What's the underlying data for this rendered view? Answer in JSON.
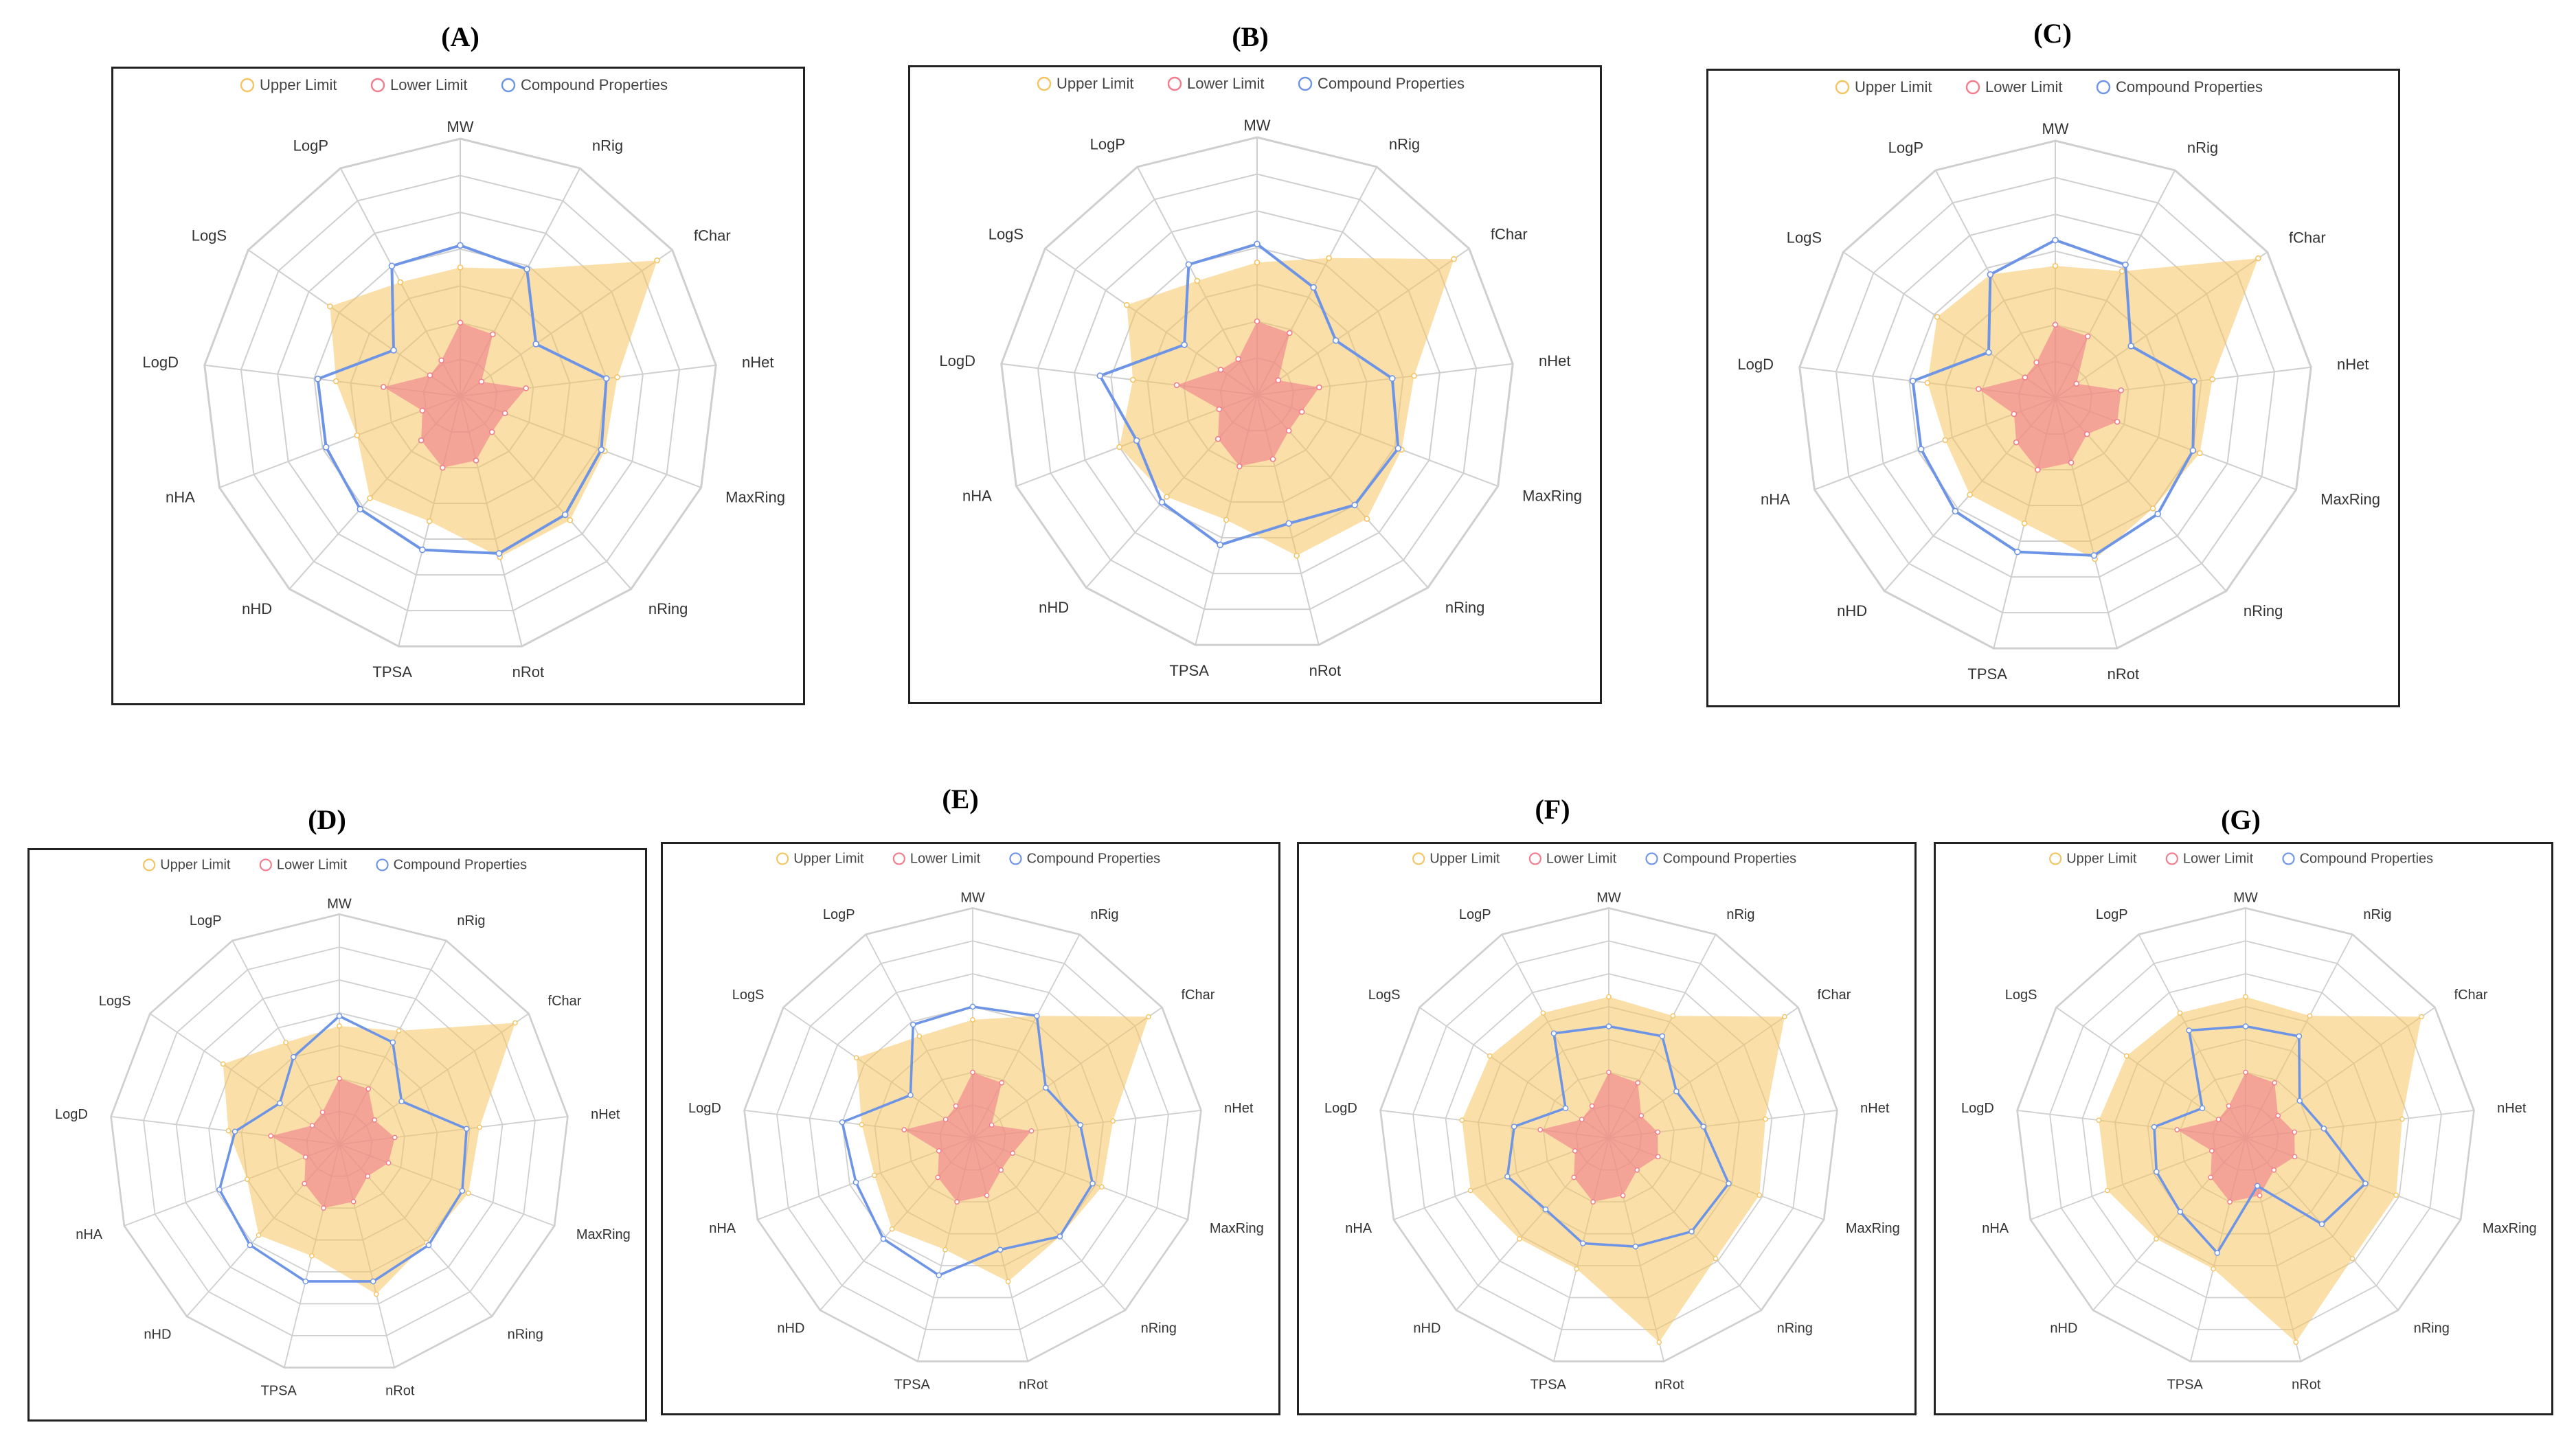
{
  "chart_data": {
    "type": "radar",
    "axes": [
      "MW",
      "nRig",
      "fChar",
      "nHet",
      "MaxRing",
      "nRing",
      "nRot",
      "TPSA",
      "nHD",
      "nHA",
      "LogD",
      "LogS",
      "LogP"
    ],
    "legend": [
      "Upper Limit",
      "Lower Limit",
      "Compound Properties"
    ],
    "colors": {
      "upper": "#f5c462",
      "lower": "#f07c8c",
      "compound": "#6e94e6",
      "grid": "#cfcfcf"
    },
    "scale_max": 7,
    "panels": [
      {
        "label": "(A)",
        "upper": [
          3.5,
          3.9,
          6.5,
          4.3,
          4.2,
          4.5,
          4.5,
          3.5,
          3.7,
          3.0,
          3.4,
          4.3,
          3.5
        ],
        "lower": [
          2.0,
          1.9,
          0.7,
          1.8,
          1.3,
          1.3,
          1.8,
          2.0,
          1.6,
          1.1,
          2.1,
          1.0,
          1.1
        ],
        "compound": [
          4.1,
          3.9,
          2.5,
          4.0,
          4.1,
          4.3,
          4.4,
          4.3,
          4.1,
          3.9,
          3.9,
          2.2,
          4.0
        ]
      },
      {
        "label": "(B)",
        "upper": [
          3.6,
          4.2,
          6.5,
          4.3,
          4.2,
          4.5,
          4.5,
          3.5,
          3.7,
          4.0,
          3.4,
          4.3,
          3.5
        ],
        "lower": [
          2.0,
          1.9,
          0.7,
          1.7,
          1.3,
          1.3,
          1.8,
          2.0,
          1.6,
          1.1,
          2.2,
          1.2,
          1.1
        ],
        "compound": [
          4.1,
          3.3,
          2.6,
          3.7,
          4.1,
          4.0,
          3.6,
          4.2,
          3.9,
          3.5,
          4.3,
          2.4,
          4.0
        ]
      },
      {
        "label": "(C)",
        "upper": [
          3.6,
          3.9,
          6.7,
          4.3,
          4.2,
          4.0,
          4.5,
          3.5,
          3.5,
          3.2,
          3.5,
          3.9,
          3.8
        ],
        "lower": [
          2.0,
          1.9,
          0.7,
          1.8,
          1.8,
          1.3,
          1.8,
          2.0,
          1.6,
          1.2,
          2.1,
          1.0,
          1.1
        ],
        "compound": [
          4.3,
          4.1,
          2.5,
          3.8,
          4.0,
          4.2,
          4.4,
          4.3,
          4.1,
          3.9,
          3.9,
          2.2,
          3.8
        ]
      },
      {
        "label": "(D)",
        "upper": [
          3.6,
          3.9,
          6.5,
          4.3,
          4.2,
          4.0,
          4.7,
          3.5,
          3.7,
          3.0,
          3.4,
          4.3,
          3.5
        ],
        "lower": [
          2.0,
          1.9,
          1.3,
          1.7,
          1.6,
          1.3,
          1.8,
          2.0,
          1.6,
          1.1,
          2.1,
          1.0,
          1.1
        ],
        "compound": [
          3.9,
          3.5,
          2.3,
          3.9,
          4.0,
          4.1,
          4.3,
          4.3,
          4.1,
          3.9,
          3.2,
          2.2,
          3.0
        ]
      },
      {
        "label": "(E)",
        "upper": [
          3.6,
          4.2,
          6.5,
          4.3,
          4.2,
          4.0,
          4.5,
          3.5,
          3.7,
          3.2,
          3.4,
          4.3,
          3.5
        ],
        "lower": [
          2.0,
          1.9,
          0.7,
          1.8,
          1.3,
          1.3,
          1.8,
          2.0,
          1.6,
          1.1,
          2.1,
          1.0,
          1.1
        ],
        "compound": [
          4.0,
          4.2,
          2.7,
          3.3,
          3.9,
          4.0,
          3.5,
          4.3,
          4.1,
          3.8,
          4.0,
          2.3,
          3.9
        ]
      },
      {
        "label": "(F)",
        "upper": [
          4.3,
          4.2,
          6.5,
          4.8,
          4.9,
          4.9,
          6.4,
          4.1,
          4.1,
          4.5,
          4.5,
          4.4,
          4.3
        ],
        "lower": [
          2.0,
          1.9,
          1.2,
          1.5,
          1.6,
          1.3,
          1.8,
          2.0,
          1.6,
          1.1,
          2.1,
          1.0,
          1.1
        ],
        "compound": [
          3.4,
          3.5,
          2.5,
          2.9,
          3.9,
          3.8,
          3.4,
          3.3,
          2.9,
          3.3,
          2.9,
          1.6,
          3.6
        ]
      },
      {
        "label": "(G)",
        "upper": [
          4.3,
          4.2,
          6.5,
          4.8,
          4.9,
          4.9,
          6.4,
          4.1,
          4.1,
          4.5,
          4.5,
          4.4,
          4.3
        ],
        "lower": [
          2.0,
          1.9,
          1.2,
          1.5,
          1.6,
          1.3,
          1.8,
          2.0,
          1.6,
          1.1,
          2.1,
          1.0,
          1.1
        ],
        "compound": [
          3.4,
          3.5,
          2.0,
          2.4,
          3.9,
          3.5,
          1.5,
          3.6,
          3.0,
          2.9,
          2.8,
          1.6,
          3.7
        ]
      }
    ]
  }
}
